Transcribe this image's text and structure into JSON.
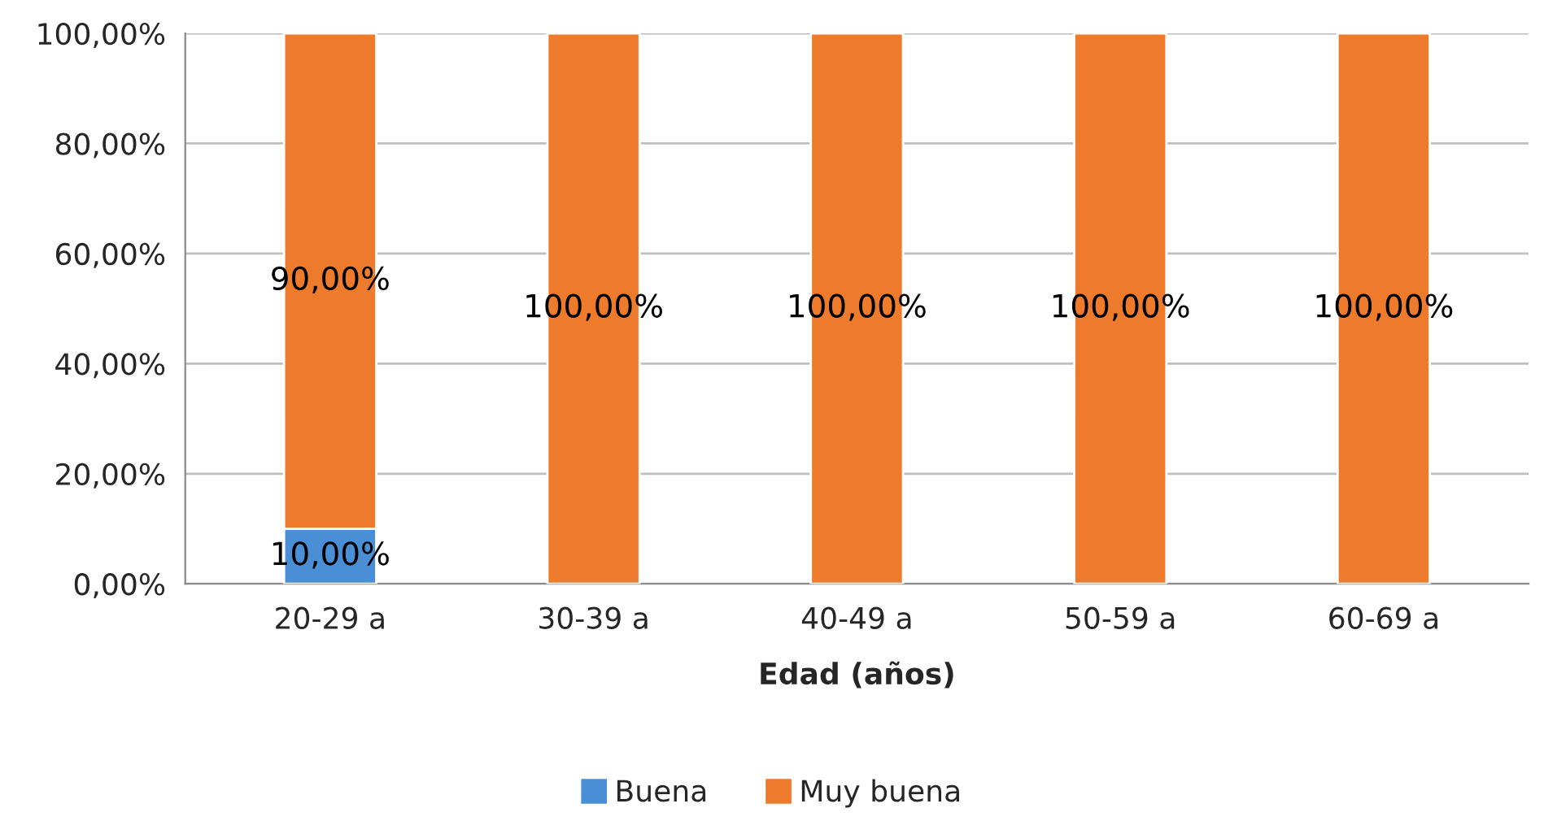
{
  "chart_data": {
    "type": "bar",
    "stacked": true,
    "xlabel": "Edad (años)",
    "categories": [
      "20-29 a",
      "30-39 a",
      "40-49 a",
      "50-59 a",
      "60-69 a"
    ],
    "series": [
      {
        "name": "Buena",
        "color": "#4a8fd6",
        "values": [
          10,
          0,
          0,
          0,
          0
        ],
        "value_labels": [
          "10,00%",
          null,
          null,
          null,
          null
        ]
      },
      {
        "name": "Muy buena",
        "color": "#ee7a2c",
        "values": [
          90,
          100,
          100,
          100,
          100
        ],
        "value_labels": [
          "90,00%",
          "100,00%",
          "100,00%",
          "100,00%",
          "100,00%"
        ]
      }
    ],
    "ylim": [
      0,
      100
    ],
    "yticks": [
      {
        "value": 0,
        "label": "0,00%"
      },
      {
        "value": 20,
        "label": "20,00%"
      },
      {
        "value": 40,
        "label": "40,00%"
      },
      {
        "value": 60,
        "label": "60,00%"
      },
      {
        "value": 80,
        "label": "80,00%"
      },
      {
        "value": 100,
        "label": "100,00%"
      }
    ],
    "grid": "y",
    "legend": "bottom"
  }
}
